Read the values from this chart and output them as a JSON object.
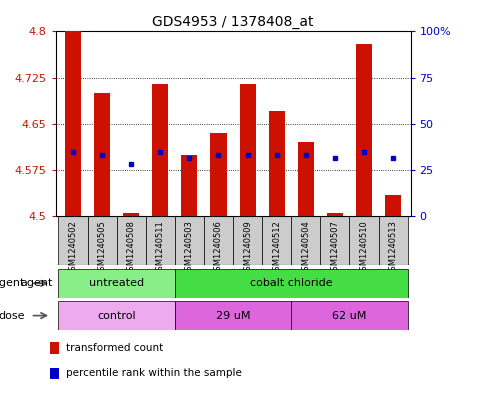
{
  "title": "GDS4953 / 1378408_at",
  "samples": [
    "GSM1240502",
    "GSM1240505",
    "GSM1240508",
    "GSM1240511",
    "GSM1240503",
    "GSM1240506",
    "GSM1240509",
    "GSM1240512",
    "GSM1240504",
    "GSM1240507",
    "GSM1240510",
    "GSM1240513"
  ],
  "bar_tops": [
    4.8,
    4.7,
    4.505,
    4.715,
    4.6,
    4.635,
    4.715,
    4.67,
    4.62,
    4.505,
    4.78,
    4.535
  ],
  "blue_y": [
    4.605,
    4.6,
    4.585,
    4.605,
    4.595,
    4.6,
    4.6,
    4.6,
    4.6,
    4.595,
    4.605,
    4.595
  ],
  "bar_base": 4.5,
  "ylim": [
    4.5,
    4.8
  ],
  "yticks": [
    4.5,
    4.575,
    4.65,
    4.725,
    4.8
  ],
  "ytick_labels": [
    "4.5",
    "4.575",
    "4.65",
    "4.725",
    "4.8"
  ],
  "right_yticks": [
    0,
    25,
    50,
    75,
    100
  ],
  "right_ytick_labels": [
    "0",
    "25",
    "50",
    "75",
    "100%"
  ],
  "bar_color": "#cc1100",
  "blue_color": "#0000cc",
  "grid_color": "#000000",
  "agent_groups": [
    {
      "label": "untreated",
      "start": 0,
      "end": 4,
      "color": "#88ee88"
    },
    {
      "label": "cobalt chloride",
      "start": 4,
      "end": 12,
      "color": "#44dd44"
    }
  ],
  "dose_groups": [
    {
      "label": "control",
      "start": 0,
      "end": 4,
      "color": "#eeaaee"
    },
    {
      "label": "29 uM",
      "start": 4,
      "end": 8,
      "color": "#dd66dd"
    },
    {
      "label": "62 uM",
      "start": 8,
      "end": 12,
      "color": "#dd66dd"
    }
  ],
  "ylabel_left_color": "#cc1100",
  "ylabel_right_color": "#0000cc",
  "legend_items": [
    {
      "label": "transformed count",
      "color": "#cc1100"
    },
    {
      "label": "percentile rank within the sample",
      "color": "#0000cc"
    }
  ],
  "bar_width": 0.55,
  "sample_box_color": "#cccccc",
  "fig_bg": "#ffffff"
}
